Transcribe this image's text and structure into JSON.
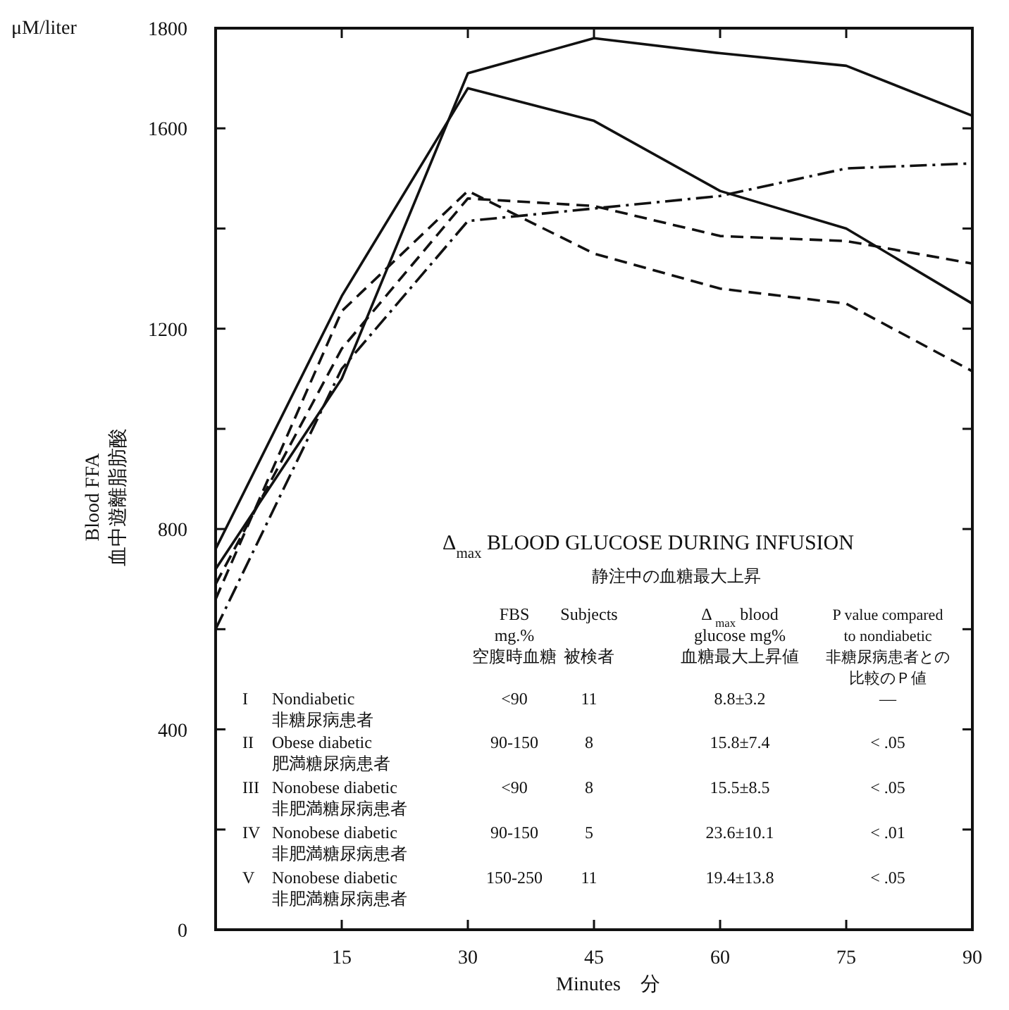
{
  "chart_data": {
    "type": "line",
    "xlabel": "Minutes　分",
    "ylabel": "Blood FFA\n血中遊離脂肪酸",
    "x": [
      0,
      15,
      30,
      45,
      60,
      75,
      90
    ],
    "xlim": [
      0,
      90
    ],
    "xticks": [
      15,
      30,
      45,
      60,
      75,
      90
    ],
    "ylim": [
      0,
      1800
    ],
    "yticks": [
      0,
      {
        "value": 200,
        "label": null
      },
      400,
      {
        "value": 600,
        "label": null
      },
      800,
      {
        "value": 1000,
        "label": null
      },
      1200,
      {
        "value": 1400,
        "label": null
      },
      1600,
      1800
    ],
    "series": [
      {
        "color": "#111111",
        "line_style": "solid",
        "values": [
          720,
          1100,
          1710,
          1780,
          1750,
          1725,
          1625
        ]
      },
      {
        "color": "#111111",
        "line_style": "solid",
        "values": [
          760,
          1265,
          1680,
          1615,
          1475,
          1400,
          1250
        ]
      },
      {
        "color": "#111111",
        "line_style": "dashdot",
        "values": [
          600,
          1120,
          1415,
          1440,
          1465,
          1520,
          1530
        ]
      },
      {
        "color": "#111111",
        "line_style": "dashed",
        "values": [
          690,
          1160,
          1460,
          1445,
          1385,
          1375,
          1330
        ]
      },
      {
        "color": "#111111",
        "line_style": "dashed",
        "values": [
          660,
          1235,
          1475,
          1350,
          1280,
          1250,
          1115
        ]
      }
    ],
    "annotations": [
      "μM/liter",
      "Δ$_{max}$ BLOOD GLUCOSE DURING INFUSION",
      "静注中の血糖最大上昇",
      "FBS\nmg.%\n空腹時血糖",
      "Subjects\n\n被検者",
      "Δ $_{max}$ blood\nglucose mg%\n血糖最大上昇値",
      "P value compared\nto nondiabetic\n非糖尿病患者との",
      "比較のＰ値",
      "I",
      "Nondiabetic\n非糖尿病患者",
      "<90",
      "11",
      "8.8±3.2",
      "—",
      "II",
      "Obese diabetic\n肥満糖尿病患者",
      "90-150",
      "8",
      "15.8±7.4",
      "< .05",
      "III",
      "Nonobese diabetic\n非肥満糖尿病患者",
      "<90",
      "8",
      "15.5±8.5",
      "< .05",
      "IV",
      "Nonobese diabetic\n非肥満糖尿病患者",
      "90-150",
      "5",
      "23.6±10.1",
      "< .01",
      "V",
      "Nonobese diabetic\n非肥満糖尿病患者",
      "150-250",
      "11",
      "19.4±13.8",
      "< .05"
    ]
  }
}
